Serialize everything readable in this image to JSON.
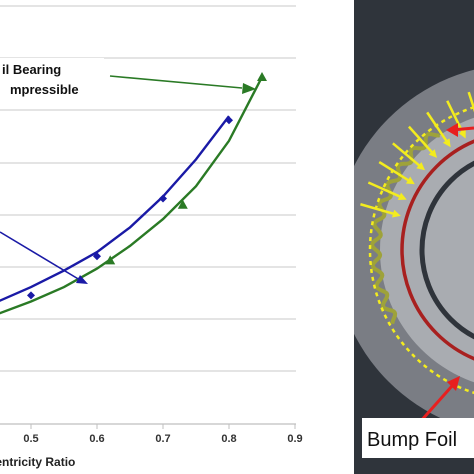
{
  "chart_data": {
    "type": "line",
    "xlabel": "Eccentricity Ratio",
    "xlim": [
      0.35,
      0.9
    ],
    "x_ticks": [
      "0.5",
      "0.6",
      "0.7",
      "0.8",
      "0.9"
    ],
    "grid": true,
    "annotations": [
      "il Bearing",
      "mpressible"
    ],
    "series": [
      {
        "color": "#1a1aa6",
        "points_x": [
          0.5,
          0.6,
          0.7,
          0.8
        ],
        "points_y": [
          0.11,
          0.3,
          0.58,
          0.96
        ],
        "curve_x": [
          0.35,
          0.4,
          0.45,
          0.5,
          0.55,
          0.6,
          0.65,
          0.7,
          0.75,
          0.8
        ],
        "curve_y": [
          -0.03,
          0.02,
          0.08,
          0.15,
          0.23,
          0.32,
          0.44,
          0.59,
          0.77,
          0.98
        ]
      },
      {
        "color": "#2a7a25",
        "points_x": [
          0.62,
          0.73,
          0.85
        ],
        "points_y": [
          0.28,
          0.55,
          1.17
        ],
        "curve_x": [
          0.35,
          0.4,
          0.45,
          0.5,
          0.55,
          0.6,
          0.65,
          0.7,
          0.75,
          0.8,
          0.85
        ],
        "curve_y": [
          -0.09,
          -0.04,
          0.02,
          0.08,
          0.15,
          0.24,
          0.35,
          0.48,
          0.64,
          0.86,
          1.17
        ]
      }
    ]
  },
  "diagram": {
    "label": "Bump Foil",
    "colors": {
      "panel": "#2f343b",
      "ring": "#7a7d84",
      "inner": "#a9acb1",
      "bump": "#9ea23a",
      "rotor_outline": "#a8201f",
      "arrow": "#f3ec1e",
      "label_arrow": "#e81f1f",
      "label_bg": "#ffffff"
    }
  }
}
